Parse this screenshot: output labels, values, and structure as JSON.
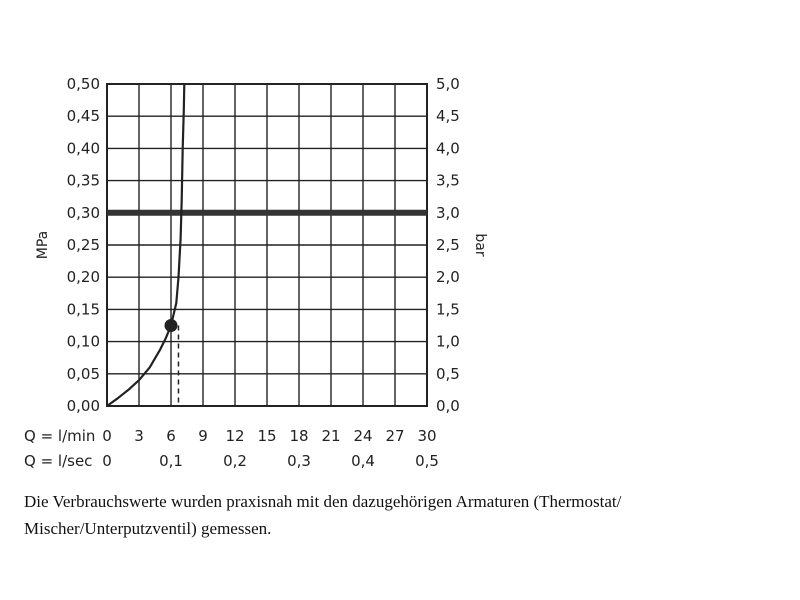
{
  "chart_data": {
    "type": "line",
    "y_left": {
      "label": "MPa",
      "ticks": [
        "0,00",
        "0,05",
        "0,10",
        "0,15",
        "0,20",
        "0,25",
        "0,30",
        "0,35",
        "0,40",
        "0,45",
        "0,50"
      ],
      "range": [
        0,
        0.5
      ]
    },
    "y_right": {
      "label": "bar",
      "ticks": [
        "0,0",
        "0,5",
        "1,0",
        "1,5",
        "2,0",
        "2,5",
        "3,0",
        "3,5",
        "4,0",
        "4,5",
        "5,0"
      ],
      "range": [
        0,
        5
      ]
    },
    "x_primary": {
      "label": "Q = l/min",
      "ticks": [
        "0",
        "3",
        "6",
        "9",
        "12",
        "15",
        "18",
        "21",
        "24",
        "27",
        "30"
      ],
      "range": [
        0,
        30
      ]
    },
    "x_secondary": {
      "label": "Q = l/sec",
      "ticks": [
        {
          "value": 0,
          "text": "0"
        },
        {
          "value": 6,
          "text": "0,1"
        },
        {
          "value": 12,
          "text": "0,2"
        },
        {
          "value": 18,
          "text": "0,3"
        },
        {
          "value": 24,
          "text": "0,4"
        },
        {
          "value": 30,
          "text": "0,5"
        }
      ]
    },
    "grid": true,
    "series": [
      {
        "x": [
          0,
          1.0,
          2.0,
          3.0,
          4.0,
          5.0,
          5.5,
          6.0,
          6.5,
          6.7,
          6.9,
          7.0,
          7.1,
          7.2,
          7.25
        ],
        "y": [
          0,
          0.012,
          0.025,
          0.04,
          0.06,
          0.088,
          0.105,
          0.125,
          0.16,
          0.2,
          0.26,
          0.32,
          0.4,
          0.46,
          0.5
        ]
      }
    ],
    "reference_line": {
      "y": 0.3
    },
    "marker_point": {
      "x": 6.0,
      "y": 0.125
    },
    "dashed_vertical": {
      "x": 6.7,
      "y_top": 0.125
    }
  },
  "caption": "Die Verbrauchswerte wurden praxisnah mit den dazugehörigen Armaturen (Thermostat/ Mischer/Unterputzventil) gemessen."
}
